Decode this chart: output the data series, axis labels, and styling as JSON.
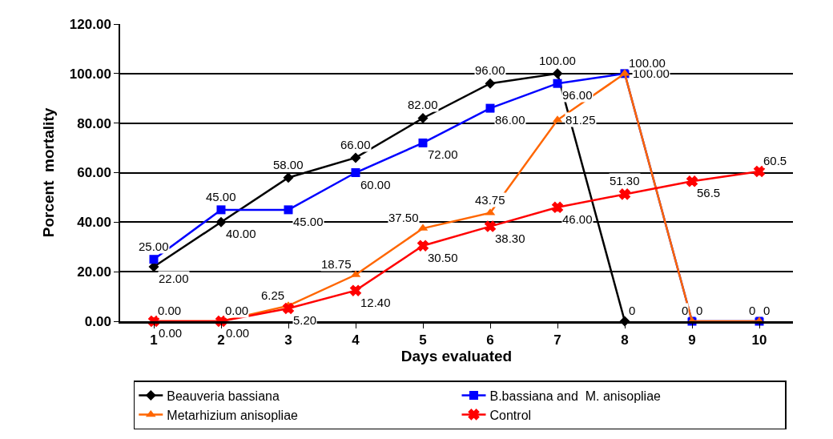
{
  "chart_data": {
    "type": "line",
    "xlabel": "Days evaluated",
    "ylabel": "Porcent  mortality",
    "x": [
      1,
      2,
      3,
      4,
      5,
      6,
      7,
      8,
      9,
      10
    ],
    "xlim": [
      0.5,
      10.5
    ],
    "xticks": [
      1,
      2,
      3,
      4,
      5,
      6,
      7,
      8,
      9,
      10
    ],
    "ylim": [
      0,
      120
    ],
    "yticks": [
      {
        "value": 0,
        "label": "0.00"
      },
      {
        "value": 20,
        "label": "20.00"
      },
      {
        "value": 40,
        "label": "40.00"
      },
      {
        "value": 60,
        "label": "60.00"
      },
      {
        "value": 80,
        "label": "80.00"
      },
      {
        "value": 100,
        "label": "100.00"
      },
      {
        "value": 120,
        "label": "120.00"
      }
    ],
    "grid": "y",
    "legend": "bottom",
    "line_style": "solid",
    "series": [
      {
        "name": "Beauveria bassiana",
        "color": "#000000",
        "marker": "diamond",
        "values": [
          22,
          40,
          58,
          66,
          82,
          96,
          100,
          0,
          null,
          null
        ],
        "value_labels": [
          "22.00",
          "40.00",
          "58.00",
          "66.00",
          "82.00",
          "96.00",
          "100.00",
          "0",
          null,
          null
        ]
      },
      {
        "name": "B.bassiana and  M. anisopliae",
        "color": "#0000ff",
        "marker": "square",
        "values": [
          25,
          45,
          45,
          60,
          72,
          86,
          96,
          100,
          0,
          0
        ],
        "value_labels": [
          "25.00",
          "45.00",
          "45.00",
          "60.00",
          "72.00",
          "86.00",
          "96.00",
          "100.00",
          "0",
          "0"
        ]
      },
      {
        "name": "Metarhizium anisopliae",
        "color": "#ff6600",
        "marker": "triangle",
        "values": [
          0,
          0,
          6.25,
          18.75,
          37.5,
          43.75,
          81.25,
          100,
          0,
          0
        ],
        "value_labels": [
          "0.00",
          "0.00",
          "6.25",
          "18.75",
          "37.50",
          "43.75",
          "81.25",
          "100.00",
          "0",
          "0"
        ]
      },
      {
        "name": "Control",
        "color": "#ff0000",
        "marker": "cross",
        "values": [
          0,
          0,
          5.2,
          12.4,
          30.5,
          38.3,
          46,
          51.3,
          56.5,
          60.5
        ],
        "value_labels": [
          "0.00",
          "0.00",
          "5.20",
          "12.40",
          "30.50",
          "38.30",
          "46.00",
          "51.30",
          "56.5",
          "60.5"
        ]
      }
    ]
  }
}
